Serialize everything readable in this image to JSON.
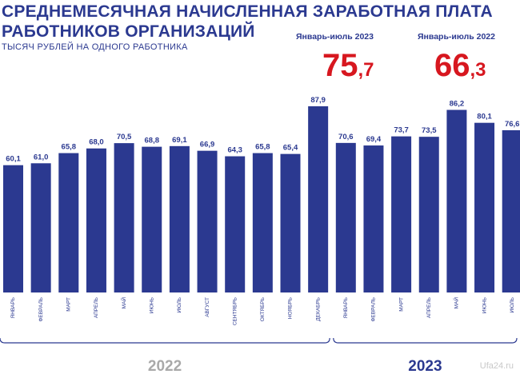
{
  "header": {
    "title_line1": "СРЕДНЕМЕСЯЧНАЯ НАЧИСЛЕННАЯ ЗАРАБОТНАЯ ПЛАТА",
    "title_line2": "РАБОТНИКОВ ОРГАНИЗАЦИЙ",
    "subtitle": "ТЫСЯЧ РУБЛЕЙ НА ОДНОГО РАБОТНИКА"
  },
  "summary": [
    {
      "period": "Январь-июль 2023",
      "value_int": "75",
      "value_dec": ",7"
    },
    {
      "period": "Январь-июль 2022",
      "value_int": "66",
      "value_dec": ",3"
    }
  ],
  "watermark": "Ufa24.ru",
  "colors": {
    "bar": "#2b3990",
    "accent": "#d7171f",
    "text": "#2b3990"
  },
  "chart_data": {
    "type": "bar",
    "categories": [
      "ЯНВАРЬ",
      "ФЕВРАЛЬ",
      "МАРТ",
      "АПРЕЛЬ",
      "МАЙ",
      "ИЮНЬ",
      "ИЮЛЬ",
      "АВГУСТ",
      "СЕНТЯБРЬ",
      "ОКТЯБРЬ",
      "НОЯБРЬ",
      "ДЕКАБРЬ",
      "ЯНВАРЬ",
      "ФЕВРАЛЬ",
      "МАРТ",
      "АПРЕЛЬ",
      "МАЙ",
      "ИЮНЬ",
      "ИЮЛЬ"
    ],
    "values": [
      60.1,
      61.0,
      65.8,
      68.0,
      70.5,
      68.8,
      69.1,
      66.9,
      64.3,
      65.8,
      65.4,
      87.9,
      70.6,
      69.4,
      73.7,
      73.5,
      86.2,
      80.1,
      76.6
    ],
    "labels": [
      "60,1",
      "61,0",
      "65,8",
      "68,0",
      "70,5",
      "68,8",
      "69,1",
      "66,9",
      "64,3",
      "65,8",
      "65,4",
      "87,9",
      "70,6",
      "69,4",
      "73,7",
      "73,5",
      "86,2",
      "80,1",
      "76,6"
    ],
    "groups": [
      {
        "label": "2022",
        "start": 0,
        "end": 11
      },
      {
        "label": "2023",
        "start": 12,
        "end": 18
      }
    ],
    "ylim": [
      0,
      90
    ],
    "grid": false,
    "legend": "none"
  }
}
